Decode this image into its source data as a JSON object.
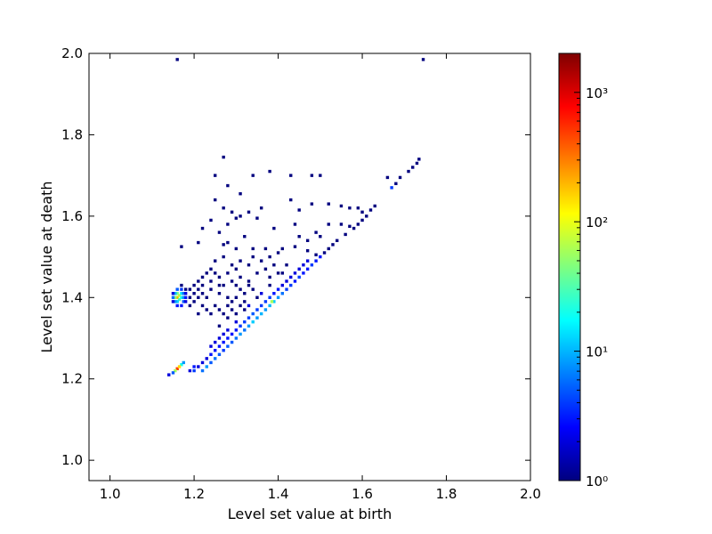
{
  "chart_data": {
    "type": "heatmap",
    "title": "",
    "xlabel": "Level set value at birth",
    "ylabel": "Level set value at death",
    "xlim": [
      0.95,
      2.0
    ],
    "ylim": [
      0.95,
      2.0
    ],
    "x_ticks": [
      "1.0",
      "1.2",
      "1.4",
      "1.6",
      "1.8",
      "2.0"
    ],
    "y_ticks": [
      "1.0",
      "1.2",
      "1.4",
      "1.6",
      "1.8",
      "2.0"
    ],
    "colorbar": {
      "scale": "log",
      "range": [
        1,
        2000
      ],
      "ticks": [
        {
          "value": 1,
          "label": "10⁰"
        },
        {
          "value": 10,
          "label": "10¹"
        },
        {
          "value": 100,
          "label": "10²"
        },
        {
          "value": 1000,
          "label": "10³"
        }
      ],
      "colormap": [
        "#00007f",
        "#0000ff",
        "#007fff",
        "#00ffff",
        "#7fff7f",
        "#ffff00",
        "#ff7f00",
        "#ff0000",
        "#7f0000"
      ]
    },
    "grid": false,
    "cells": [
      [
        1.16,
        1.985,
        1
      ],
      [
        1.745,
        1.985,
        1
      ],
      [
        1.27,
        1.745,
        1
      ],
      [
        1.735,
        1.74,
        1
      ],
      [
        1.73,
        1.73,
        1
      ],
      [
        1.72,
        1.72,
        1
      ],
      [
        1.71,
        1.71,
        1
      ],
      [
        1.38,
        1.71,
        1
      ],
      [
        1.25,
        1.7,
        1
      ],
      [
        1.34,
        1.7,
        1
      ],
      [
        1.43,
        1.7,
        1
      ],
      [
        1.48,
        1.7,
        1
      ],
      [
        1.5,
        1.7,
        1
      ],
      [
        1.66,
        1.695,
        1
      ],
      [
        1.69,
        1.695,
        1
      ],
      [
        1.68,
        1.68,
        1
      ],
      [
        1.67,
        1.67,
        4
      ],
      [
        1.28,
        1.675,
        1
      ],
      [
        1.31,
        1.655,
        1
      ],
      [
        1.25,
        1.64,
        1
      ],
      [
        1.43,
        1.64,
        1
      ],
      [
        1.48,
        1.63,
        1
      ],
      [
        1.27,
        1.62,
        1
      ],
      [
        1.29,
        1.61,
        1
      ],
      [
        1.33,
        1.61,
        1
      ],
      [
        1.36,
        1.62,
        1
      ],
      [
        1.45,
        1.615,
        1
      ],
      [
        1.52,
        1.63,
        1
      ],
      [
        1.55,
        1.625,
        1
      ],
      [
        1.57,
        1.62,
        1
      ],
      [
        1.59,
        1.62,
        1
      ],
      [
        1.6,
        1.61,
        1
      ],
      [
        1.63,
        1.625,
        1
      ],
      [
        1.62,
        1.615,
        1
      ],
      [
        1.61,
        1.6,
        1
      ],
      [
        1.6,
        1.59,
        1
      ],
      [
        1.59,
        1.58,
        1
      ],
      [
        1.31,
        1.6,
        1
      ],
      [
        1.24,
        1.59,
        1
      ],
      [
        1.3,
        1.595,
        1
      ],
      [
        1.35,
        1.595,
        1
      ],
      [
        1.44,
        1.58,
        1
      ],
      [
        1.52,
        1.58,
        1
      ],
      [
        1.55,
        1.58,
        1
      ],
      [
        1.57,
        1.575,
        1
      ],
      [
        1.58,
        1.57,
        1
      ],
      [
        1.28,
        1.58,
        1
      ],
      [
        1.22,
        1.57,
        1
      ],
      [
        1.39,
        1.57,
        1
      ],
      [
        1.49,
        1.56,
        1
      ],
      [
        1.5,
        1.55,
        1
      ],
      [
        1.56,
        1.555,
        1
      ],
      [
        1.54,
        1.54,
        1
      ],
      [
        1.53,
        1.53,
        1
      ],
      [
        1.52,
        1.52,
        1
      ],
      [
        1.51,
        1.51,
        1
      ],
      [
        1.26,
        1.56,
        1
      ],
      [
        1.27,
        1.53,
        1
      ],
      [
        1.32,
        1.55,
        1
      ],
      [
        1.45,
        1.55,
        1
      ],
      [
        1.47,
        1.54,
        1
      ],
      [
        1.17,
        1.525,
        1
      ],
      [
        1.21,
        1.535,
        1
      ],
      [
        1.28,
        1.535,
        1
      ],
      [
        1.3,
        1.52,
        1
      ],
      [
        1.37,
        1.52,
        1
      ],
      [
        1.41,
        1.52,
        1
      ],
      [
        1.44,
        1.525,
        1
      ],
      [
        1.47,
        1.515,
        1
      ],
      [
        1.49,
        1.505,
        1
      ],
      [
        1.5,
        1.5,
        3
      ],
      [
        1.49,
        1.49,
        3
      ],
      [
        1.48,
        1.48,
        4
      ],
      [
        1.47,
        1.47,
        3
      ],
      [
        1.46,
        1.46,
        3
      ],
      [
        1.45,
        1.45,
        4
      ],
      [
        1.44,
        1.44,
        3
      ],
      [
        1.43,
        1.43,
        4
      ],
      [
        1.42,
        1.42,
        4
      ],
      [
        1.41,
        1.41,
        6
      ],
      [
        1.4,
        1.4,
        8
      ],
      [
        1.39,
        1.39,
        12
      ],
      [
        1.385,
        1.39,
        60
      ],
      [
        1.38,
        1.38,
        10
      ],
      [
        1.37,
        1.37,
        8
      ],
      [
        1.36,
        1.36,
        10
      ],
      [
        1.35,
        1.35,
        8
      ],
      [
        1.34,
        1.34,
        12
      ],
      [
        1.33,
        1.33,
        8
      ],
      [
        1.32,
        1.32,
        6
      ],
      [
        1.31,
        1.31,
        8
      ],
      [
        1.3,
        1.3,
        6
      ],
      [
        1.29,
        1.29,
        5
      ],
      [
        1.28,
        1.28,
        5
      ],
      [
        1.27,
        1.27,
        4
      ],
      [
        1.26,
        1.26,
        5
      ],
      [
        1.25,
        1.25,
        6
      ],
      [
        1.24,
        1.24,
        5
      ],
      [
        1.23,
        1.23,
        8
      ],
      [
        1.22,
        1.22,
        6
      ],
      [
        1.2,
        1.22,
        4
      ],
      [
        1.17,
        1.235,
        20
      ],
      [
        1.16,
        1.225,
        500
      ],
      [
        1.165,
        1.23,
        150
      ],
      [
        1.155,
        1.22,
        60
      ],
      [
        1.15,
        1.215,
        5
      ],
      [
        1.14,
        1.21,
        2
      ],
      [
        1.175,
        1.24,
        8
      ],
      [
        1.47,
        1.49,
        2
      ],
      [
        1.46,
        1.48,
        2
      ],
      [
        1.45,
        1.47,
        2
      ],
      [
        1.44,
        1.46,
        2
      ],
      [
        1.43,
        1.45,
        2
      ],
      [
        1.42,
        1.44,
        2
      ],
      [
        1.41,
        1.43,
        2
      ],
      [
        1.4,
        1.42,
        3
      ],
      [
        1.39,
        1.41,
        3
      ],
      [
        1.38,
        1.4,
        4
      ],
      [
        1.37,
        1.39,
        4
      ],
      [
        1.36,
        1.38,
        4
      ],
      [
        1.35,
        1.37,
        4
      ],
      [
        1.34,
        1.36,
        5
      ],
      [
        1.33,
        1.35,
        4
      ],
      [
        1.32,
        1.34,
        4
      ],
      [
        1.31,
        1.33,
        4
      ],
      [
        1.3,
        1.32,
        3
      ],
      [
        1.29,
        1.31,
        3
      ],
      [
        1.28,
        1.3,
        3
      ],
      [
        1.27,
        1.29,
        3
      ],
      [
        1.26,
        1.28,
        3
      ],
      [
        1.25,
        1.27,
        3
      ],
      [
        1.24,
        1.26,
        3
      ],
      [
        1.23,
        1.25,
        2
      ],
      [
        1.22,
        1.24,
        2
      ],
      [
        1.21,
        1.23,
        2
      ],
      [
        1.2,
        1.23,
        3
      ],
      [
        1.19,
        1.22,
        2
      ],
      [
        1.3,
        1.34,
        2
      ],
      [
        1.28,
        1.32,
        2
      ],
      [
        1.27,
        1.31,
        2
      ],
      [
        1.26,
        1.3,
        2
      ],
      [
        1.25,
        1.29,
        2
      ],
      [
        1.24,
        1.28,
        2
      ],
      [
        1.33,
        1.38,
        2
      ],
      [
        1.32,
        1.37,
        1
      ],
      [
        1.36,
        1.41,
        2
      ],
      [
        1.35,
        1.4,
        1
      ],
      [
        1.38,
        1.43,
        1
      ],
      [
        1.41,
        1.46,
        1
      ],
      [
        1.29,
        1.37,
        1
      ],
      [
        1.31,
        1.38,
        1
      ],
      [
        1.27,
        1.36,
        1
      ],
      [
        1.3,
        1.36,
        1
      ],
      [
        1.28,
        1.35,
        1
      ],
      [
        1.26,
        1.33,
        1
      ],
      [
        1.34,
        1.42,
        1
      ],
      [
        1.32,
        1.41,
        1
      ],
      [
        1.3,
        1.4,
        1
      ],
      [
        1.28,
        1.4,
        1
      ],
      [
        1.26,
        1.41,
        1
      ],
      [
        1.24,
        1.42,
        1
      ],
      [
        1.22,
        1.41,
        1
      ],
      [
        1.23,
        1.4,
        1
      ],
      [
        1.25,
        1.38,
        1
      ],
      [
        1.27,
        1.43,
        1
      ],
      [
        1.29,
        1.44,
        1
      ],
      [
        1.31,
        1.45,
        1
      ],
      [
        1.33,
        1.44,
        1
      ],
      [
        1.35,
        1.46,
        1
      ],
      [
        1.37,
        1.47,
        1
      ],
      [
        1.39,
        1.48,
        1
      ],
      [
        1.26,
        1.45,
        1
      ],
      [
        1.28,
        1.46,
        1
      ],
      [
        1.3,
        1.47,
        1
      ],
      [
        1.24,
        1.44,
        1
      ],
      [
        1.22,
        1.43,
        1
      ],
      [
        1.21,
        1.42,
        1
      ],
      [
        1.22,
        1.38,
        1
      ],
      [
        1.25,
        1.46,
        1
      ],
      [
        1.33,
        1.48,
        1
      ],
      [
        1.36,
        1.49,
        1
      ],
      [
        1.34,
        1.5,
        1
      ],
      [
        1.31,
        1.49,
        1
      ],
      [
        1.29,
        1.48,
        1
      ],
      [
        1.38,
        1.45,
        1
      ],
      [
        1.4,
        1.46,
        1
      ],
      [
        1.42,
        1.48,
        1
      ],
      [
        1.38,
        1.5,
        1
      ],
      [
        1.4,
        1.51,
        1
      ],
      [
        1.34,
        1.52,
        1
      ],
      [
        1.27,
        1.5,
        1
      ],
      [
        1.25,
        1.49,
        1
      ],
      [
        1.26,
        1.43,
        1
      ],
      [
        1.24,
        1.36,
        1
      ],
      [
        1.21,
        1.36,
        1
      ],
      [
        1.23,
        1.37,
        1
      ],
      [
        1.26,
        1.37,
        1
      ],
      [
        1.28,
        1.38,
        1
      ],
      [
        1.29,
        1.39,
        1
      ],
      [
        1.32,
        1.39,
        1
      ],
      [
        1.31,
        1.42,
        1
      ],
      [
        1.33,
        1.43,
        1
      ],
      [
        1.3,
        1.43,
        1
      ],
      [
        1.16,
        1.4,
        200
      ],
      [
        1.165,
        1.405,
        80
      ],
      [
        1.16,
        1.41,
        40
      ],
      [
        1.155,
        1.4,
        50
      ],
      [
        1.165,
        1.395,
        30
      ],
      [
        1.17,
        1.4,
        20
      ],
      [
        1.17,
        1.41,
        15
      ],
      [
        1.16,
        1.39,
        12
      ],
      [
        1.155,
        1.39,
        8
      ],
      [
        1.15,
        1.4,
        6
      ],
      [
        1.155,
        1.41,
        10
      ],
      [
        1.16,
        1.42,
        5
      ],
      [
        1.17,
        1.42,
        4
      ],
      [
        1.175,
        1.41,
        6
      ],
      [
        1.175,
        1.4,
        8
      ],
      [
        1.175,
        1.39,
        5
      ],
      [
        1.17,
        1.38,
        3
      ],
      [
        1.16,
        1.38,
        3
      ],
      [
        1.15,
        1.39,
        2
      ],
      [
        1.15,
        1.41,
        2
      ],
      [
        1.18,
        1.4,
        3
      ],
      [
        1.18,
        1.41,
        2
      ],
      [
        1.18,
        1.39,
        2
      ],
      [
        1.19,
        1.4,
        1
      ],
      [
        1.19,
        1.42,
        1
      ],
      [
        1.2,
        1.41,
        1
      ],
      [
        1.2,
        1.43,
        1
      ],
      [
        1.21,
        1.44,
        1
      ],
      [
        1.19,
        1.38,
        1
      ],
      [
        1.2,
        1.39,
        1
      ],
      [
        1.18,
        1.42,
        1
      ],
      [
        1.17,
        1.43,
        1
      ],
      [
        1.21,
        1.4,
        1
      ],
      [
        1.22,
        1.45,
        1
      ],
      [
        1.23,
        1.46,
        1
      ],
      [
        1.24,
        1.47,
        1
      ]
    ]
  }
}
